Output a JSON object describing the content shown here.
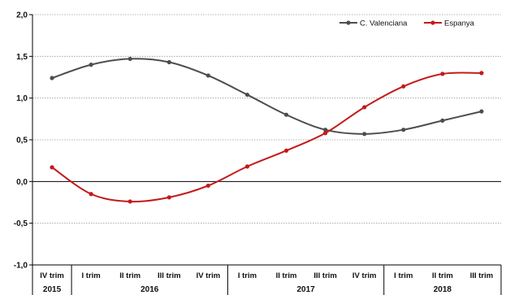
{
  "chart_data": {
    "type": "line",
    "title": "",
    "ylim": [
      -1.0,
      2.0
    ],
    "yticks": [
      -1.0,
      -0.5,
      0.0,
      0.5,
      1.0,
      1.5,
      2.0
    ],
    "ytick_labels": [
      "-1,0",
      "-0,5",
      "0,0",
      "0,5",
      "1,0",
      "1,5",
      "2,0"
    ],
    "grid": true,
    "legend_position": "top-right",
    "categories": [
      "IV trim",
      "I trim",
      "II trim",
      "III trim",
      "IV trim",
      "I trim",
      "II trim",
      "III trim",
      "IV trim",
      "I trim",
      "II trim",
      "III trim"
    ],
    "years": [
      {
        "label": "2015",
        "start": 0,
        "end": 0
      },
      {
        "label": "2016",
        "start": 1,
        "end": 4
      },
      {
        "label": "2017",
        "start": 5,
        "end": 8
      },
      {
        "label": "2018",
        "start": 9,
        "end": 11
      }
    ],
    "series": [
      {
        "name": "C. Valenciana",
        "color": "#4d4d4d",
        "values": [
          1.24,
          1.4,
          1.47,
          1.43,
          1.27,
          1.04,
          0.8,
          0.62,
          0.57,
          0.62,
          0.73,
          0.84
        ]
      },
      {
        "name": "Espanya",
        "color": "#c41a1a",
        "values": [
          0.17,
          -0.15,
          -0.24,
          -0.19,
          -0.05,
          0.18,
          0.37,
          0.58,
          0.89,
          1.14,
          1.29,
          1.3
        ]
      }
    ]
  }
}
